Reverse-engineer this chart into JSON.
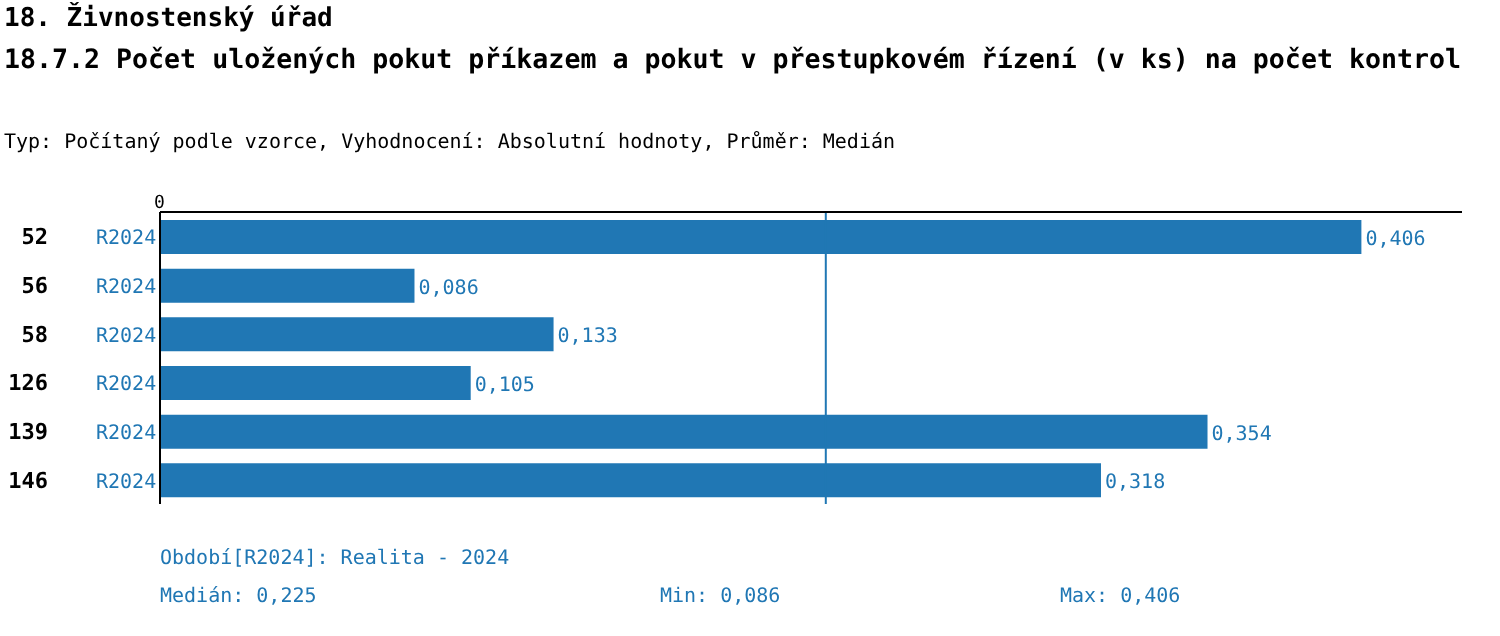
{
  "chart_data": {
    "type": "bar",
    "orientation": "horizontal",
    "title": "18. Živnostenský úřad",
    "subtitle": "18.7.2 Počet uložených pokut příkazem a pokut v přestupkovém řízení (v ks) na počet kontrol",
    "annotations": [
      "Typ: Počítaný podle vzorce, Vyhodnocení: Absolutní hodnoty, Průměr: Medián",
      "Období[R2024]: Realita - 2024",
      "Medián: 0,225",
      "Min: 0,086",
      "Max: 0,406",
      "0"
    ],
    "categories": [
      "52",
      "56",
      "58",
      "126",
      "139",
      "146"
    ],
    "series": [
      {
        "name": "R2024",
        "color": "#2077b4",
        "values": [
          0.406,
          0.086,
          0.133,
          0.105,
          0.354,
          0.318
        ],
        "value_labels": [
          "0,406",
          "0,086",
          "0,133",
          "0,105",
          "0,354",
          "0,318"
        ]
      }
    ],
    "xlim": [
      0,
      0.44
    ],
    "ref_lines": [
      {
        "axis": "x",
        "value": 0.225,
        "color": "#2077b4"
      }
    ],
    "grid": false,
    "legend": false
  }
}
